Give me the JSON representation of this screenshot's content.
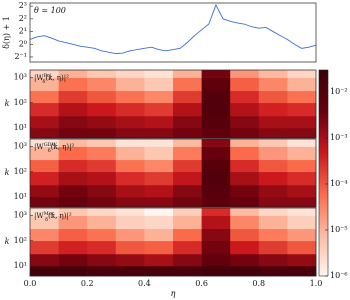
{
  "chart_data": [
    {
      "type": "line",
      "annotation": "θ = 100",
      "ylabel": "δ(η) + 1",
      "log_base": 2,
      "color": "#3a6fd8",
      "xlim": [
        0,
        1
      ],
      "ylim": [
        0.38,
        9.5
      ],
      "yticks": [
        {
          "value": 0.5,
          "label": "2⁻¹"
        },
        {
          "value": 1,
          "label": "2⁰"
        },
        {
          "value": 2,
          "label": "2¹"
        },
        {
          "value": 4,
          "label": "2²"
        },
        {
          "value": 8,
          "label": "2³"
        }
      ],
      "x": [
        0,
        0.025,
        0.05,
        0.075,
        0.1,
        0.125,
        0.15,
        0.175,
        0.2,
        0.225,
        0.25,
        0.275,
        0.3,
        0.325,
        0.35,
        0.375,
        0.4,
        0.425,
        0.45,
        0.475,
        0.5,
        0.525,
        0.55,
        0.575,
        0.6,
        0.625,
        0.65,
        0.675,
        0.7,
        0.725,
        0.75,
        0.775,
        0.8,
        0.825,
        0.85,
        0.875,
        0.9,
        0.925,
        0.95,
        0.975,
        1
      ],
      "values": [
        1.3,
        1.5,
        1.6,
        1.4,
        1.2,
        1.1,
        1.0,
        0.9,
        0.85,
        0.8,
        0.7,
        0.65,
        0.6,
        0.62,
        0.7,
        0.75,
        0.8,
        0.85,
        0.75,
        0.7,
        0.75,
        0.8,
        1.1,
        1.6,
        2.2,
        3.0,
        8.5,
        4.0,
        3.5,
        3.2,
        3.0,
        2.6,
        2.4,
        2.5,
        2.0,
        1.6,
        1.3,
        1.0,
        0.8,
        0.85,
        0.95
      ]
    },
    {
      "type": "heatmap",
      "label": {
        "base": "|W",
        "sub": "δ",
        "sup": "Poi",
        "rest": "(k, η)|²"
      },
      "ylabel": "k",
      "xlim": [
        0,
        1
      ],
      "ylim": [
        4,
        2000
      ],
      "yticks": [
        {
          "value": 10,
          "label": "10¹"
        },
        {
          "value": 100,
          "label": "10²"
        },
        {
          "value": 1000,
          "label": "10³"
        }
      ],
      "x_edges": [
        0,
        0.1,
        0.2,
        0.3,
        0.4,
        0.5,
        0.6,
        0.7,
        0.8,
        0.9,
        1
      ],
      "y_edges": [
        4,
        10,
        30,
        100,
        300,
        1000,
        2000
      ],
      "values": [
        [
          0.002,
          0.003,
          0.003,
          0.002,
          0.002,
          0.003,
          0.005,
          0.003,
          0.002,
          0.002
        ],
        [
          0.001,
          0.002,
          0.0015,
          0.001,
          0.0008,
          0.002,
          0.008,
          0.002,
          0.001,
          0.001
        ],
        [
          0.0003,
          0.0008,
          0.0005,
          0.0003,
          0.0002,
          0.0008,
          0.01,
          0.0008,
          0.0004,
          0.0003
        ],
        [
          5e-05,
          0.0002,
          0.0001,
          5e-05,
          3e-05,
          0.0002,
          0.01,
          0.0003,
          0.0001,
          5e-05
        ],
        [
          1e-05,
          5e-05,
          3e-05,
          1e-05,
          5e-06,
          5e-05,
          0.006,
          8e-05,
          3e-05,
          1e-05
        ],
        [
          3e-06,
          1e-05,
          5e-06,
          3e-06,
          2e-06,
          1e-05,
          0.003,
          2e-05,
          8e-06,
          3e-06
        ]
      ]
    },
    {
      "type": "heatmap",
      "label": {
        "base": "|W",
        "sub": "δ",
        "sup": "GDW",
        "rest": "(k, η)|²"
      },
      "ylabel": "k",
      "xlim": [
        0,
        1
      ],
      "ylim": [
        4,
        2000
      ],
      "yticks": [
        {
          "value": 10,
          "label": "10¹"
        },
        {
          "value": 100,
          "label": "10²"
        },
        {
          "value": 1000,
          "label": "10³"
        }
      ],
      "x_edges": [
        0,
        0.1,
        0.2,
        0.3,
        0.4,
        0.5,
        0.6,
        0.7,
        0.8,
        0.9,
        1
      ],
      "y_edges": [
        4,
        10,
        30,
        100,
        300,
        1000,
        2000
      ],
      "values": [
        [
          0.003,
          0.004,
          0.003,
          0.002,
          0.002,
          0.003,
          0.006,
          0.004,
          0.002,
          0.002
        ],
        [
          0.0015,
          0.003,
          0.002,
          0.001,
          0.0008,
          0.002,
          0.008,
          0.003,
          0.0015,
          0.001
        ],
        [
          0.0004,
          0.001,
          0.0008,
          0.0003,
          0.0002,
          0.0006,
          0.01,
          0.001,
          0.0005,
          0.0003
        ],
        [
          8e-05,
          0.0003,
          0.0002,
          5e-05,
          3e-05,
          0.0002,
          0.008,
          0.0003,
          0.0001,
          6e-05
        ],
        [
          1e-05,
          6e-05,
          4e-05,
          1e-05,
          5e-06,
          4e-05,
          0.004,
          6e-05,
          2e-05,
          1e-05
        ],
        [
          2e-06,
          8e-06,
          5e-06,
          2e-06,
          2e-06,
          8e-06,
          0.002,
          1e-05,
          5e-06,
          2e-06
        ]
      ]
    },
    {
      "type": "heatmap",
      "label": {
        "base": "|W",
        "sub": "δ",
        "sup": "Mor",
        "rest": "(k, η)|²"
      },
      "ylabel": "k",
      "xlabel": "η",
      "xlim": [
        0,
        1
      ],
      "ylim": [
        4,
        2000
      ],
      "yticks": [
        {
          "value": 10,
          "label": "10¹"
        },
        {
          "value": 100,
          "label": "10²"
        },
        {
          "value": 1000,
          "label": "10³"
        }
      ],
      "xticks": [
        {
          "value": 0,
          "label": "0.0"
        },
        0.2,
        0.4,
        0.6,
        0.8,
        {
          "value": 1,
          "label": "1.0"
        }
      ],
      "x_edges": [
        0,
        0.1,
        0.2,
        0.3,
        0.4,
        0.5,
        0.6,
        0.7,
        0.8,
        0.9,
        1
      ],
      "y_edges": [
        4,
        10,
        30,
        100,
        300,
        1000,
        2000
      ],
      "values": [
        [
          0.02,
          0.02,
          0.015,
          0.015,
          0.015,
          0.015,
          0.02,
          0.02,
          0.015,
          0.015
        ],
        [
          0.002,
          0.003,
          0.002,
          0.0015,
          0.001,
          0.002,
          0.005,
          0.003,
          0.002,
          0.0015
        ],
        [
          0.0002,
          0.0004,
          0.0003,
          0.0001,
          8e-05,
          0.0003,
          0.003,
          0.0005,
          0.0002,
          0.0001
        ],
        [
          3e-05,
          8e-05,
          5e-05,
          2e-05,
          1e-05,
          6e-05,
          0.002,
          0.0001,
          4e-05,
          2e-05
        ],
        [
          5e-06,
          2e-05,
          1e-05,
          4e-06,
          3e-06,
          1e-05,
          0.0008,
          3e-05,
          1e-05,
          4e-06
        ],
        [
          2e-06,
          5e-06,
          3e-06,
          2e-06,
          1e-06,
          4e-06,
          0.0003,
          8e-06,
          3e-06,
          2e-06
        ]
      ]
    },
    {
      "type": "colorbar",
      "colormap": [
        "#fff5f0",
        "#fcbba1",
        "#fb6a4a",
        "#cb181d",
        "#67000d",
        "#3a0008"
      ],
      "ylim": [
        1e-06,
        0.03
      ],
      "yticks": [
        {
          "value": 0.01,
          "label": "10⁻²"
        },
        {
          "value": 0.001,
          "label": "10⁻³"
        },
        {
          "value": 0.0001,
          "label": "10⁻⁴"
        },
        {
          "value": 1e-05,
          "label": "10⁻⁵"
        },
        {
          "value": 1e-06,
          "label": "10⁻⁶"
        }
      ]
    }
  ]
}
